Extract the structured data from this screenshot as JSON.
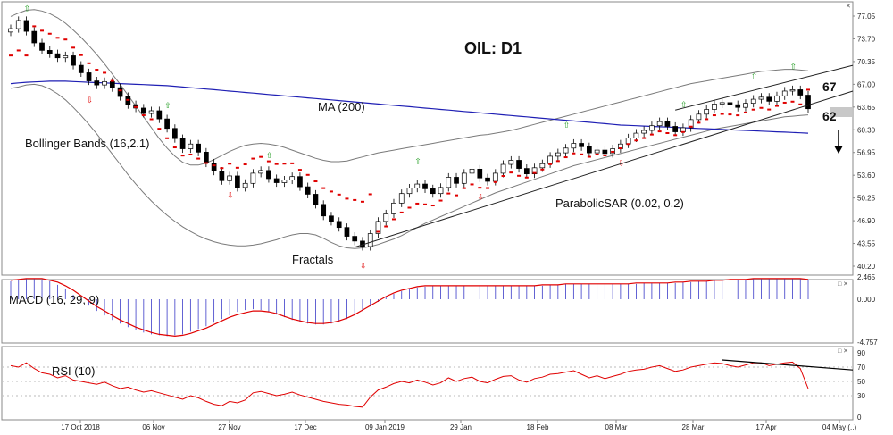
{
  "chart_data": [
    {
      "type": "candlestick",
      "title": "OIL: D1",
      "y_ticks": [
        "77.05",
        "73.70",
        "70.35",
        "67.00",
        "63.65",
        "60.30",
        "56.95",
        "53.60",
        "50.25",
        "46.90",
        "43.55",
        "40.20"
      ],
      "ylim": [
        40.2,
        77.05
      ],
      "x_ticks": [
        "17 Oct 2018",
        "06 Nov",
        "27 Nov",
        "17 Dec",
        "09 Jan 2019",
        "29 Jan",
        "18 Feb",
        "08 Mar",
        "28 Mar",
        "17 Apr",
        "04 May (..)"
      ],
      "price_badge": "",
      "close_series": [
        75.2,
        76.4,
        74.8,
        73.1,
        72.0,
        71.5,
        70.9,
        71.2,
        69.8,
        68.7,
        67.5,
        66.9,
        67.4,
        66.5,
        65.2,
        64.0,
        63.5,
        62.7,
        63.1,
        61.9,
        60.5,
        59.0,
        57.5,
        58.2,
        57.0,
        55.4,
        54.2,
        52.8,
        53.5,
        51.8,
        52.4,
        53.9,
        54.3,
        53.1,
        52.5,
        52.9,
        53.4,
        51.9,
        50.8,
        49.3,
        47.6,
        46.8,
        45.9,
        44.6,
        43.9,
        43.1,
        45.0,
        46.8,
        47.9,
        49.5,
        50.9,
        51.7,
        52.3,
        51.6,
        50.9,
        51.8,
        53.3,
        52.4,
        53.9,
        54.5,
        53.2,
        52.7,
        53.9,
        55.2,
        55.8,
        54.6,
        53.8,
        54.7,
        55.3,
        56.4,
        56.9,
        57.6,
        58.3,
        57.8,
        56.9,
        57.3,
        56.8,
        57.5,
        58.2,
        59.1,
        59.8,
        60.2,
        60.9,
        61.5,
        60.8,
        60.0,
        60.6,
        61.8,
        62.6,
        63.3,
        64.1,
        64.3,
        64.0,
        63.6,
        64.2,
        64.8,
        65.1,
        64.5,
        65.3,
        66.0,
        66.2,
        65.4,
        63.4
      ],
      "bollinger_upper": [
        77.0,
        77.5,
        77.9,
        78.0,
        77.8,
        77.4,
        76.8,
        76.0,
        75.0,
        73.9,
        72.7,
        71.4,
        70.0,
        68.5,
        67.0,
        65.4,
        63.8,
        62.2,
        60.6,
        59.0,
        57.6,
        56.4,
        55.5,
        55.1,
        55.1,
        55.4,
        55.9,
        56.5,
        57.1,
        57.6,
        58.0,
        58.2,
        58.3,
        58.2,
        58.0,
        57.7,
        57.3,
        56.9,
        56.5,
        56.1,
        55.8,
        55.6,
        55.6,
        55.7,
        56.0,
        56.3,
        56.6,
        56.9,
        57.1,
        57.3,
        57.5,
        57.7,
        57.9,
        58.1,
        58.3,
        58.5,
        58.7,
        58.9,
        59.1,
        59.3,
        59.5,
        59.6,
        59.8,
        60.0,
        60.2,
        60.5,
        60.8,
        61.1,
        61.4,
        61.7,
        62.0,
        62.3,
        62.6,
        62.9,
        63.2,
        63.5,
        63.8,
        64.1,
        64.4,
        64.7,
        65.0,
        65.3,
        65.6,
        65.9,
        66.2,
        66.5,
        66.8,
        67.1,
        67.3,
        67.5,
        67.7,
        67.9,
        68.1,
        68.3,
        68.5,
        68.7,
        68.9,
        69.0,
        69.1,
        69.2,
        69.2,
        69.1,
        69.0
      ],
      "bollinger_lower": [
        66.4,
        66.6,
        66.9,
        67.0,
        66.8,
        66.3,
        65.6,
        64.7,
        63.6,
        62.4,
        61.1,
        59.7,
        58.2,
        56.7,
        55.2,
        53.7,
        52.3,
        51.0,
        49.8,
        48.7,
        47.7,
        46.8,
        46.0,
        45.3,
        44.7,
        44.2,
        43.8,
        43.5,
        43.3,
        43.2,
        43.2,
        43.3,
        43.5,
        43.8,
        44.1,
        44.5,
        44.8,
        45.0,
        45.0,
        44.8,
        44.3,
        43.7,
        43.2,
        42.9,
        42.8,
        42.9,
        43.1,
        43.4,
        43.8,
        44.2,
        44.7,
        45.3,
        45.9,
        46.5,
        47.0,
        47.5,
        48.0,
        48.5,
        49.0,
        49.5,
        50.0,
        50.5,
        51.0,
        51.4,
        51.8,
        52.2,
        52.6,
        53.0,
        53.4,
        53.8,
        54.2,
        54.6,
        55.0,
        55.3,
        55.6,
        55.9,
        56.2,
        56.5,
        56.8,
        57.1,
        57.4,
        57.7,
        58.0,
        58.3,
        58.6,
        58.9,
        59.2,
        59.5,
        59.8,
        60.1,
        60.4,
        60.6,
        60.8,
        61.0,
        61.2,
        61.4,
        61.6,
        61.8,
        62.0,
        62.2,
        62.3,
        62.4,
        62.5
      ],
      "ma200": [
        67.1,
        67.2,
        67.3,
        67.35,
        67.4,
        67.45,
        67.45,
        67.45,
        67.4,
        67.35,
        67.3,
        67.25,
        67.2,
        67.15,
        67.1,
        67.05,
        67.0,
        66.95,
        66.9,
        66.85,
        66.8,
        66.7,
        66.6,
        66.5,
        66.4,
        66.3,
        66.2,
        66.1,
        66.0,
        65.9,
        65.8,
        65.7,
        65.6,
        65.5,
        65.4,
        65.3,
        65.2,
        65.1,
        65.0,
        64.9,
        64.8,
        64.7,
        64.6,
        64.5,
        64.4,
        64.3,
        64.2,
        64.1,
        64.0,
        63.9,
        63.8,
        63.7,
        63.6,
        63.5,
        63.4,
        63.3,
        63.2,
        63.1,
        63.0,
        62.9,
        62.8,
        62.7,
        62.6,
        62.5,
        62.4,
        62.3,
        62.2,
        62.1,
        62.0,
        61.9,
        61.8,
        61.7,
        61.6,
        61.5,
        61.4,
        61.3,
        61.2,
        61.1,
        61.0,
        60.95,
        60.9,
        60.85,
        60.8,
        60.75,
        60.7,
        60.65,
        60.6,
        60.55,
        60.5,
        60.45,
        60.4,
        60.35,
        60.3,
        60.25,
        60.2,
        60.15,
        60.1,
        60.05,
        60.0,
        59.95,
        59.9,
        59.85,
        59.8
      ],
      "levels": [
        "67",
        "62"
      ],
      "annotations": [
        "MA (200)",
        "Bollinger Bands (16,2.1)",
        "ParabolicSAR (0.02, 0.2)",
        "Fractals"
      ]
    },
    {
      "type": "histogram",
      "label": "MACD (16, 29, 9)",
      "y_ticks": [
        "2.465",
        "0.000",
        "-4.757"
      ],
      "hist": [
        2.0,
        2.2,
        2.3,
        2.3,
        2.2,
        2.0,
        1.6,
        1.1,
        0.5,
        -0.1,
        -0.7,
        -1.3,
        -1.8,
        -2.3,
        -2.7,
        -3.1,
        -3.4,
        -3.7,
        -3.9,
        -4.0,
        -4.1,
        -4.0,
        -3.9,
        -3.6,
        -3.3,
        -3.0,
        -2.6,
        -2.2,
        -1.8,
        -1.4,
        -1.2,
        -1.1,
        -1.2,
        -1.4,
        -1.7,
        -2.0,
        -2.3,
        -2.5,
        -2.7,
        -2.8,
        -2.8,
        -2.7,
        -2.5,
        -2.2,
        -1.8,
        -1.3,
        -0.8,
        -0.3,
        0.2,
        0.6,
        0.9,
        1.1,
        1.3,
        1.4,
        1.5,
        1.5,
        1.5,
        1.5,
        1.5,
        1.5,
        1.5,
        1.5,
        1.5,
        1.5,
        1.5,
        1.5,
        1.5,
        1.5,
        1.5,
        1.6,
        1.6,
        1.7,
        1.7,
        1.7,
        1.7,
        1.7,
        1.7,
        1.7,
        1.7,
        1.7,
        1.7,
        1.8,
        1.8,
        1.8,
        1.8,
        1.8,
        1.9,
        1.9,
        2.0,
        2.0,
        2.1,
        2.1,
        2.2,
        2.2,
        2.2,
        2.3,
        2.3,
        2.3,
        2.3,
        2.3,
        2.3,
        2.3,
        2.2
      ],
      "signal": [
        2.1,
        2.2,
        2.3,
        2.3,
        2.3,
        2.1,
        1.9,
        1.5,
        1.0,
        0.4,
        -0.2,
        -0.8,
        -1.3,
        -1.8,
        -2.3,
        -2.7,
        -3.1,
        -3.4,
        -3.7,
        -3.9,
        -4.0,
        -4.1,
        -4.0,
        -3.8,
        -3.5,
        -3.2,
        -2.8,
        -2.4,
        -2.0,
        -1.7,
        -1.5,
        -1.3,
        -1.3,
        -1.4,
        -1.6,
        -1.9,
        -2.2,
        -2.4,
        -2.6,
        -2.7,
        -2.7,
        -2.6,
        -2.4,
        -2.1,
        -1.7,
        -1.2,
        -0.7,
        -0.2,
        0.3,
        0.7,
        1.0,
        1.2,
        1.4,
        1.5,
        1.5,
        1.5,
        1.5,
        1.5,
        1.5,
        1.5,
        1.5,
        1.5,
        1.5,
        1.5,
        1.5,
        1.5,
        1.5,
        1.5,
        1.6,
        1.6,
        1.6,
        1.7,
        1.7,
        1.7,
        1.7,
        1.7,
        1.7,
        1.7,
        1.7,
        1.7,
        1.8,
        1.8,
        1.8,
        1.8,
        1.8,
        1.9,
        1.9,
        2.0,
        2.0,
        2.0,
        2.1,
        2.1,
        2.2,
        2.2,
        2.2,
        2.3,
        2.3,
        2.3,
        2.3,
        2.3,
        2.3,
        2.3,
        2.2
      ]
    },
    {
      "type": "line",
      "label": "RSI (10)",
      "y_ticks": [
        "90",
        "70",
        "50",
        "30",
        "0"
      ],
      "ylim": [
        0,
        90
      ],
      "values": [
        72,
        70,
        76,
        68,
        62,
        60,
        55,
        58,
        52,
        50,
        48,
        46,
        49,
        44,
        40,
        42,
        38,
        35,
        37,
        34,
        31,
        28,
        25,
        30,
        27,
        22,
        18,
        16,
        22,
        20,
        24,
        34,
        36,
        33,
        30,
        32,
        35,
        31,
        28,
        25,
        22,
        20,
        18,
        17,
        15,
        14,
        28,
        38,
        42,
        47,
        50,
        48,
        52,
        49,
        45,
        48,
        55,
        50,
        54,
        56,
        50,
        48,
        53,
        57,
        58,
        52,
        49,
        54,
        56,
        60,
        61,
        63,
        65,
        60,
        55,
        58,
        54,
        57,
        60,
        64,
        66,
        67,
        70,
        72,
        68,
        64,
        66,
        70,
        72,
        74,
        76,
        75,
        72,
        70,
        73,
        76,
        76,
        72,
        74,
        76,
        77,
        68,
        40
      ],
      "trendline_label": ""
    }
  ]
}
